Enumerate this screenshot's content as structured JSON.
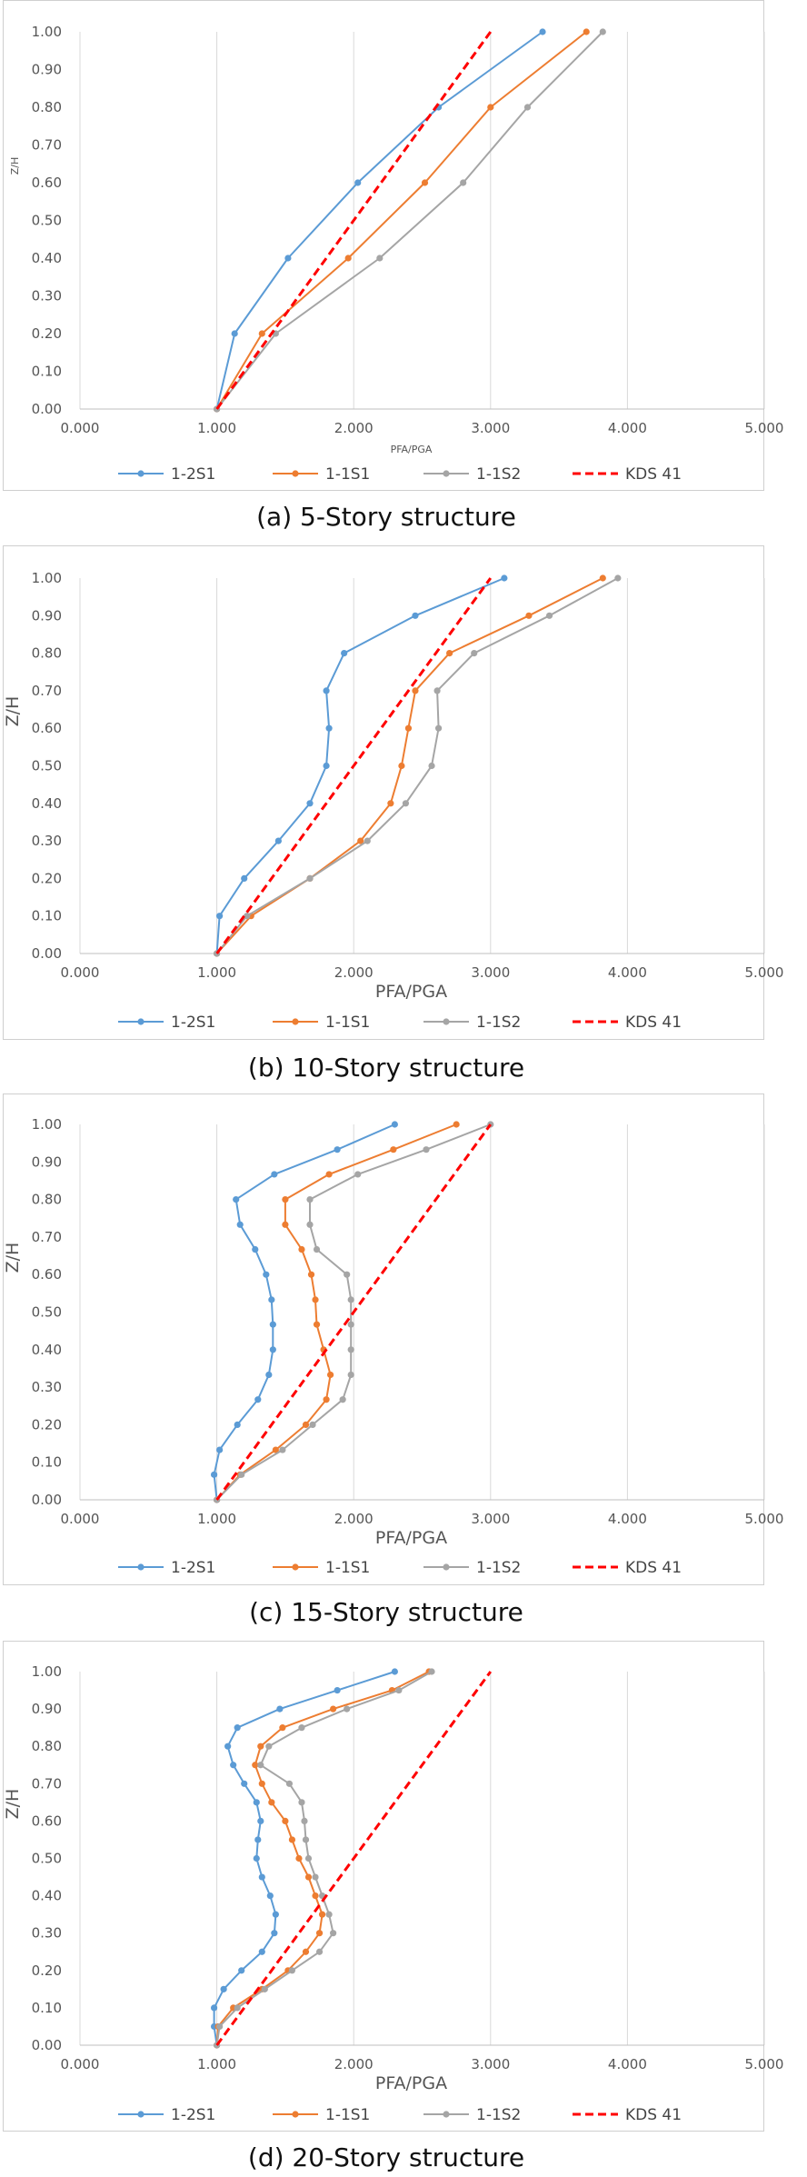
{
  "chart_data": [
    {
      "type": "line",
      "caption": "(a) 5-Story structure",
      "xlabel": "PFA/PGA",
      "ylabel": "Z/H",
      "xlim": [
        0,
        5
      ],
      "ylim": [
        0,
        1
      ],
      "x_ticks": [
        "0.000",
        "1.000",
        "2.000",
        "3.000",
        "4.000",
        "5.000"
      ],
      "y_ticks": [
        "0.00",
        "0.10",
        "0.20",
        "0.30",
        "0.40",
        "0.50",
        "0.60",
        "0.70",
        "0.80",
        "0.90",
        "1.00"
      ],
      "grid": "vertical",
      "legend": "bottom",
      "series": [
        {
          "name": "1-2S1",
          "color": "#5b9bd5",
          "style": "line-marker",
          "points": [
            [
              1.0,
              0.0
            ],
            [
              1.13,
              0.2
            ],
            [
              1.52,
              0.4
            ],
            [
              2.03,
              0.6
            ],
            [
              2.62,
              0.8
            ],
            [
              3.38,
              1.0
            ]
          ]
        },
        {
          "name": "1-1S1",
          "color": "#ed7d31",
          "style": "line-marker",
          "points": [
            [
              1.0,
              0.0
            ],
            [
              1.33,
              0.2
            ],
            [
              1.96,
              0.4
            ],
            [
              2.52,
              0.6
            ],
            [
              3.0,
              0.8
            ],
            [
              3.7,
              1.0
            ]
          ]
        },
        {
          "name": "1-1S2",
          "color": "#a5a5a5",
          "style": "line-marker",
          "points": [
            [
              1.0,
              0.0
            ],
            [
              1.43,
              0.2
            ],
            [
              2.19,
              0.4
            ],
            [
              2.8,
              0.6
            ],
            [
              3.27,
              0.8
            ],
            [
              3.82,
              1.0
            ]
          ]
        },
        {
          "name": "KDS 41",
          "color": "#ff0000",
          "style": "dashed",
          "points": [
            [
              1.0,
              0.0
            ],
            [
              3.0,
              1.0
            ]
          ]
        }
      ]
    },
    {
      "type": "line",
      "caption": "(b) 10-Story structure",
      "xlabel": "PFA/PGA",
      "ylabel": "Z/H",
      "xlim": [
        0,
        5
      ],
      "ylim": [
        0,
        1
      ],
      "x_ticks": [
        "0.000",
        "1.000",
        "2.000",
        "3.000",
        "4.000",
        "5.000"
      ],
      "y_ticks": [
        "0.00",
        "0.10",
        "0.20",
        "0.30",
        "0.40",
        "0.50",
        "0.60",
        "0.70",
        "0.80",
        "0.90",
        "1.00"
      ],
      "grid": "vertical",
      "legend": "bottom",
      "series": [
        {
          "name": "1-2S1",
          "color": "#5b9bd5",
          "style": "line-marker",
          "points": [
            [
              1.0,
              0.0
            ],
            [
              1.02,
              0.1
            ],
            [
              1.2,
              0.2
            ],
            [
              1.45,
              0.3
            ],
            [
              1.68,
              0.4
            ],
            [
              1.8,
              0.5
            ],
            [
              1.82,
              0.6
            ],
            [
              1.8,
              0.7
            ],
            [
              1.93,
              0.8
            ],
            [
              2.45,
              0.9
            ],
            [
              3.1,
              1.0
            ]
          ]
        },
        {
          "name": "1-1S1",
          "color": "#ed7d31",
          "style": "line-marker",
          "points": [
            [
              1.0,
              0.0
            ],
            [
              1.25,
              0.1
            ],
            [
              1.68,
              0.2
            ],
            [
              2.05,
              0.3
            ],
            [
              2.27,
              0.4
            ],
            [
              2.35,
              0.5
            ],
            [
              2.4,
              0.6
            ],
            [
              2.45,
              0.7
            ],
            [
              2.7,
              0.8
            ],
            [
              3.28,
              0.9
            ],
            [
              3.82,
              1.0
            ]
          ]
        },
        {
          "name": "1-1S2",
          "color": "#a5a5a5",
          "style": "line-marker",
          "points": [
            [
              1.0,
              0.0
            ],
            [
              1.22,
              0.1
            ],
            [
              1.68,
              0.2
            ],
            [
              2.1,
              0.3
            ],
            [
              2.38,
              0.4
            ],
            [
              2.57,
              0.5
            ],
            [
              2.62,
              0.6
            ],
            [
              2.61,
              0.7
            ],
            [
              2.88,
              0.8
            ],
            [
              3.43,
              0.9
            ],
            [
              3.93,
              1.0
            ]
          ]
        },
        {
          "name": "KDS 41",
          "color": "#ff0000",
          "style": "dashed",
          "points": [
            [
              1.0,
              0.0
            ],
            [
              3.0,
              1.0
            ]
          ]
        }
      ]
    },
    {
      "type": "line",
      "caption": "(c) 15-Story structure",
      "xlabel": "PFA/PGA",
      "ylabel": "Z/H",
      "xlim": [
        0,
        5
      ],
      "ylim": [
        0,
        1
      ],
      "x_ticks": [
        "0.000",
        "1.000",
        "2.000",
        "3.000",
        "4.000",
        "5.000"
      ],
      "y_ticks": [
        "0.00",
        "0.10",
        "0.20",
        "0.30",
        "0.40",
        "0.50",
        "0.60",
        "0.70",
        "0.80",
        "0.90",
        "1.00"
      ],
      "grid": "vertical",
      "legend": "bottom",
      "series": [
        {
          "name": "1-2S1",
          "color": "#5b9bd5",
          "style": "line-marker",
          "points": [
            [
              1.0,
              0.0
            ],
            [
              0.98,
              0.067
            ],
            [
              1.02,
              0.133
            ],
            [
              1.15,
              0.2
            ],
            [
              1.3,
              0.267
            ],
            [
              1.38,
              0.333
            ],
            [
              1.41,
              0.4
            ],
            [
              1.41,
              0.467
            ],
            [
              1.4,
              0.533
            ],
            [
              1.36,
              0.6
            ],
            [
              1.28,
              0.667
            ],
            [
              1.17,
              0.733
            ],
            [
              1.14,
              0.8
            ],
            [
              1.42,
              0.867
            ],
            [
              1.88,
              0.933
            ],
            [
              2.3,
              1.0
            ]
          ]
        },
        {
          "name": "1-1S1",
          "color": "#ed7d31",
          "style": "line-marker",
          "points": [
            [
              1.0,
              0.0
            ],
            [
              1.17,
              0.067
            ],
            [
              1.43,
              0.133
            ],
            [
              1.65,
              0.2
            ],
            [
              1.8,
              0.267
            ],
            [
              1.83,
              0.333
            ],
            [
              1.78,
              0.4
            ],
            [
              1.73,
              0.467
            ],
            [
              1.72,
              0.533
            ],
            [
              1.69,
              0.6
            ],
            [
              1.62,
              0.667
            ],
            [
              1.5,
              0.733
            ],
            [
              1.5,
              0.8
            ],
            [
              1.82,
              0.867
            ],
            [
              2.29,
              0.933
            ],
            [
              2.75,
              1.0
            ]
          ]
        },
        {
          "name": "1-1S2",
          "color": "#a5a5a5",
          "style": "line-marker",
          "points": [
            [
              1.0,
              0.0
            ],
            [
              1.18,
              0.067
            ],
            [
              1.48,
              0.133
            ],
            [
              1.7,
              0.2
            ],
            [
              1.92,
              0.267
            ],
            [
              1.98,
              0.333
            ],
            [
              1.98,
              0.4
            ],
            [
              1.98,
              0.467
            ],
            [
              1.98,
              0.533
            ],
            [
              1.95,
              0.6
            ],
            [
              1.73,
              0.667
            ],
            [
              1.68,
              0.733
            ],
            [
              1.68,
              0.8
            ],
            [
              2.03,
              0.867
            ],
            [
              2.53,
              0.933
            ],
            [
              3.0,
              1.0
            ]
          ]
        },
        {
          "name": "KDS 41",
          "color": "#ff0000",
          "style": "dashed",
          "points": [
            [
              1.0,
              0.0
            ],
            [
              3.0,
              1.0
            ]
          ]
        }
      ]
    },
    {
      "type": "line",
      "caption": "(d) 20-Story structure",
      "xlabel": "PFA/PGA",
      "ylabel": "Z/H",
      "xlim": [
        0,
        5
      ],
      "ylim": [
        0,
        1
      ],
      "x_ticks": [
        "0.000",
        "1.000",
        "2.000",
        "3.000",
        "4.000",
        "5.000"
      ],
      "y_ticks": [
        "0.00",
        "0.10",
        "0.20",
        "0.30",
        "0.40",
        "0.50",
        "0.60",
        "0.70",
        "0.80",
        "0.90",
        "1.00"
      ],
      "grid": "vertical",
      "legend": "bottom",
      "series": [
        {
          "name": "1-2S1",
          "color": "#5b9bd5",
          "style": "line-marker",
          "points": [
            [
              1.0,
              0.0
            ],
            [
              0.98,
              0.05
            ],
            [
              0.98,
              0.1
            ],
            [
              1.05,
              0.15
            ],
            [
              1.18,
              0.2
            ],
            [
              1.33,
              0.25
            ],
            [
              1.42,
              0.3
            ],
            [
              1.43,
              0.35
            ],
            [
              1.39,
              0.4
            ],
            [
              1.33,
              0.45
            ],
            [
              1.29,
              0.5
            ],
            [
              1.3,
              0.55
            ],
            [
              1.32,
              0.6
            ],
            [
              1.29,
              0.65
            ],
            [
              1.2,
              0.7
            ],
            [
              1.12,
              0.75
            ],
            [
              1.08,
              0.8
            ],
            [
              1.15,
              0.85
            ],
            [
              1.46,
              0.9
            ],
            [
              1.88,
              0.95
            ],
            [
              2.3,
              1.0
            ]
          ]
        },
        {
          "name": "1-1S1",
          "color": "#ed7d31",
          "style": "line-marker",
          "points": [
            [
              1.0,
              0.0
            ],
            [
              1.01,
              0.05
            ],
            [
              1.12,
              0.1
            ],
            [
              1.33,
              0.15
            ],
            [
              1.52,
              0.2
            ],
            [
              1.65,
              0.25
            ],
            [
              1.75,
              0.3
            ],
            [
              1.77,
              0.35
            ],
            [
              1.72,
              0.4
            ],
            [
              1.67,
              0.45
            ],
            [
              1.6,
              0.5
            ],
            [
              1.55,
              0.55
            ],
            [
              1.5,
              0.6
            ],
            [
              1.4,
              0.65
            ],
            [
              1.33,
              0.7
            ],
            [
              1.28,
              0.75
            ],
            [
              1.32,
              0.8
            ],
            [
              1.48,
              0.85
            ],
            [
              1.85,
              0.9
            ],
            [
              2.28,
              0.95
            ],
            [
              2.55,
              1.0
            ]
          ]
        },
        {
          "name": "1-1S2",
          "color": "#a5a5a5",
          "style": "line-marker",
          "points": [
            [
              1.0,
              0.0
            ],
            [
              1.02,
              0.05
            ],
            [
              1.15,
              0.1
            ],
            [
              1.35,
              0.15
            ],
            [
              1.55,
              0.2
            ],
            [
              1.75,
              0.25
            ],
            [
              1.85,
              0.3
            ],
            [
              1.82,
              0.35
            ],
            [
              1.77,
              0.4
            ],
            [
              1.72,
              0.45
            ],
            [
              1.67,
              0.5
            ],
            [
              1.65,
              0.55
            ],
            [
              1.64,
              0.6
            ],
            [
              1.62,
              0.65
            ],
            [
              1.53,
              0.7
            ],
            [
              1.32,
              0.75
            ],
            [
              1.38,
              0.8
            ],
            [
              1.62,
              0.85
            ],
            [
              1.95,
              0.9
            ],
            [
              2.33,
              0.95
            ],
            [
              2.57,
              1.0
            ]
          ]
        },
        {
          "name": "KDS 41",
          "color": "#ff0000",
          "style": "dashed",
          "points": [
            [
              1.0,
              0.0
            ],
            [
              3.0,
              1.0
            ]
          ]
        }
      ]
    }
  ]
}
